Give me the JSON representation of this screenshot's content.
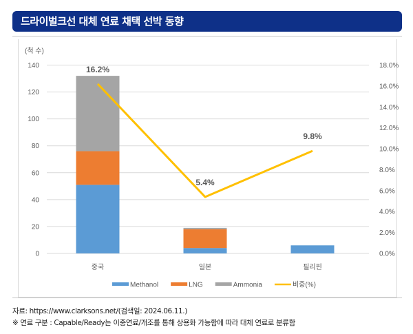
{
  "header": {
    "title": "드라이벌크선 대체 연료 채택 선박 동향"
  },
  "chart_data": {
    "type": "bar",
    "subtype": "stacked-bar-with-line",
    "title": "드라이벌크선 대체 연료 채택 선박 동향",
    "ylabel": "(척 수)",
    "categories": [
      "중국",
      "일본",
      "필리핀"
    ],
    "series": [
      {
        "name": "Methanol",
        "type": "bar",
        "axis": "left",
        "color": "#5b9bd5",
        "values": [
          51,
          4,
          6
        ]
      },
      {
        "name": "LNG",
        "type": "bar",
        "axis": "left",
        "color": "#ed7d31",
        "values": [
          25,
          14,
          0
        ]
      },
      {
        "name": "Ammonia",
        "type": "bar",
        "axis": "left",
        "color": "#a5a5a5",
        "values": [
          56,
          1,
          0
        ]
      },
      {
        "name": "비중(%)",
        "type": "line",
        "axis": "right",
        "color": "#ffc000",
        "values": [
          16.2,
          5.4,
          9.8
        ],
        "data_labels": [
          "16.2%",
          "5.4%",
          "9.8%"
        ]
      }
    ],
    "left_axis": {
      "ylim": [
        0,
        140
      ],
      "ticks": [
        "0",
        "20",
        "40",
        "60",
        "80",
        "100",
        "120",
        "140"
      ],
      "tick_values": [
        0,
        20,
        40,
        60,
        80,
        100,
        120,
        140
      ]
    },
    "right_axis": {
      "ylim": [
        0,
        18
      ],
      "ticks": [
        "0.0%",
        "2.0%",
        "4.0%",
        "6.0%",
        "8.0%",
        "10.0%",
        "12.0%",
        "14.0%",
        "16.0%",
        "18.0%"
      ],
      "tick_values": [
        0,
        2,
        4,
        6,
        8,
        10,
        12,
        14,
        16,
        18
      ]
    },
    "grid": true,
    "legend": {
      "placement": "bottom",
      "entries": [
        "Methanol",
        "LNG",
        "Ammonia",
        "비중(%)"
      ]
    }
  },
  "footer": {
    "source": "자료: https://www.clarksons.net/(검색일: 2024.06.11.)",
    "note": "※ 연료 구분 : Capable/Ready는 이중연료/개조를 통해 상용화 가능함에 따라 대체 연료로 분류함"
  }
}
